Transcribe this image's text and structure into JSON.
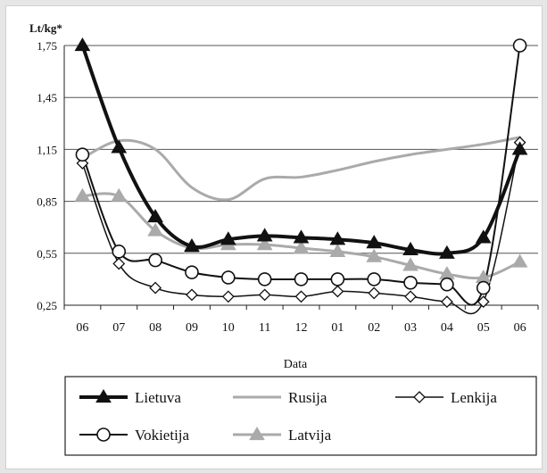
{
  "chart_data": {
    "type": "line",
    "ylabel": "Lt/kg*",
    "xlabel": "Data",
    "categories": [
      "06",
      "07",
      "08",
      "09",
      "10",
      "11",
      "12",
      "01",
      "02",
      "03",
      "04",
      "05",
      "06"
    ],
    "ylim": [
      0.25,
      1.75
    ],
    "yticks": [
      "1,75",
      "1,45",
      "1,15",
      "0,85",
      "0,55",
      "0,25"
    ],
    "ytick_values": [
      1.75,
      1.45,
      1.15,
      0.85,
      0.55,
      0.25
    ],
    "grid": true,
    "legend_position": "bottom",
    "series": [
      {
        "name": "Lietuva",
        "color": "#111111",
        "marker": "filled-triangle",
        "width": 4,
        "values": [
          1.75,
          1.16,
          0.76,
          0.59,
          0.63,
          0.65,
          0.64,
          0.63,
          0.61,
          0.57,
          0.55,
          0.64,
          1.15
        ]
      },
      {
        "name": "Rusija",
        "color": "#aaaaaa",
        "marker": "none",
        "width": 3,
        "values": [
          1.1,
          1.2,
          1.15,
          0.93,
          0.86,
          0.98,
          0.99,
          1.03,
          1.08,
          1.12,
          1.15,
          1.18,
          1.22
        ]
      },
      {
        "name": "Lenkija",
        "color": "#111111",
        "marker": "open-diamond",
        "width": 1.5,
        "values": [
          1.07,
          0.49,
          0.35,
          0.31,
          0.3,
          0.31,
          0.3,
          0.33,
          0.32,
          0.3,
          0.27,
          0.27,
          1.19
        ]
      },
      {
        "name": "Vokietija",
        "color": "#111111",
        "marker": "open-circle",
        "width": 2,
        "values": [
          1.12,
          0.56,
          0.51,
          0.44,
          0.41,
          0.4,
          0.4,
          0.4,
          0.4,
          0.38,
          0.37,
          0.35,
          1.75
        ]
      },
      {
        "name": "Latvija",
        "color": "#aaaaaa",
        "marker": "filled-triangle",
        "width": 3,
        "values": [
          0.88,
          0.88,
          0.68,
          0.58,
          0.6,
          0.6,
          0.58,
          0.56,
          0.53,
          0.48,
          0.43,
          0.41,
          0.5
        ]
      }
    ]
  }
}
